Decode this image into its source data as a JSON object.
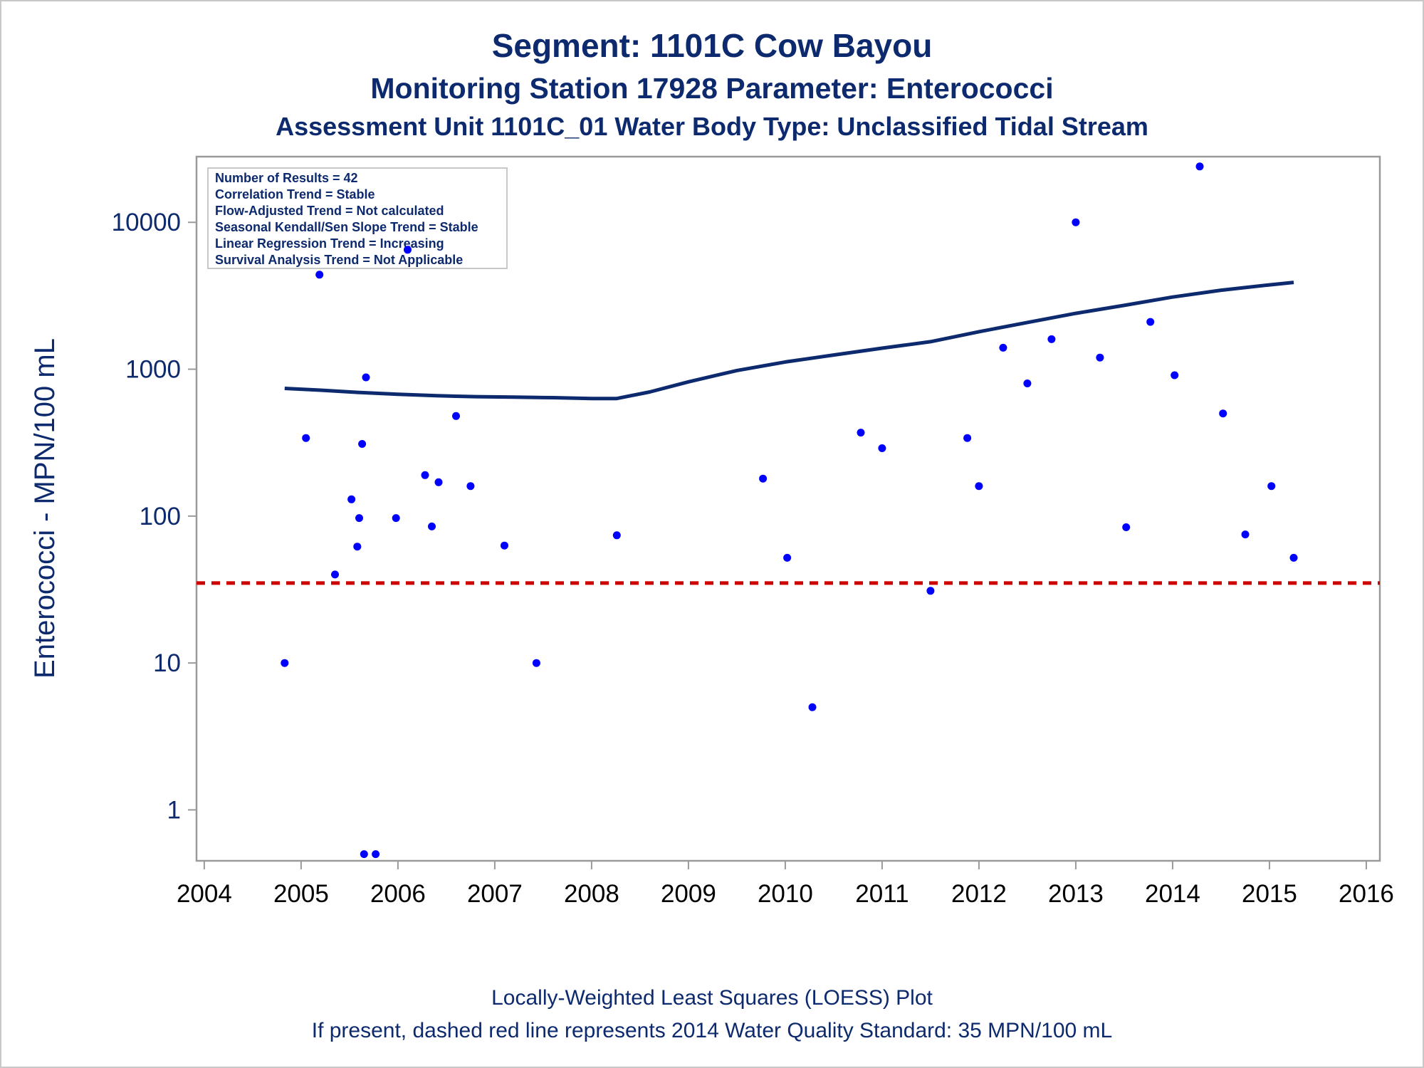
{
  "chart_data": {
    "type": "scatter",
    "title": "Segment: 1101C  Cow Bayou",
    "subtitle": "Monitoring Station 17928 Parameter: Enterococci",
    "subtitle2": "Assessment Unit 1101C_01   Water Body Type: Unclassified Tidal Stream",
    "ylabel": "Enterococci - MPN/100 mL",
    "xlabel": "",
    "y_scale": "log",
    "ylim": [
      0.45,
      28000
    ],
    "xlim": [
      2003.92,
      2016.14
    ],
    "y_ticks": [
      1,
      10,
      100,
      1000,
      10000
    ],
    "x_ticks": [
      2004,
      2005,
      2006,
      2007,
      2008,
      2009,
      2010,
      2011,
      2012,
      2013,
      2014,
      2015,
      2016
    ],
    "grid": false,
    "legend_box": [
      "Number of Results = 42",
      "Correlation Trend = Stable",
      "Flow-Adjusted Trend = Not calculated",
      "Seasonal Kendall/Sen Slope Trend = Stable",
      "Linear Regression Trend = Increasing",
      "Survival Analysis Trend = Not Applicable"
    ],
    "series": [
      {
        "type": "scatter",
        "color": "#0000ff",
        "points": [
          [
            2004.83,
            10
          ],
          [
            2005.05,
            340
          ],
          [
            2005.19,
            4400
          ],
          [
            2005.35,
            40
          ],
          [
            2005.52,
            130
          ],
          [
            2005.58,
            62
          ],
          [
            2005.6,
            97
          ],
          [
            2005.63,
            310
          ],
          [
            2005.65,
            0.5
          ],
          [
            2005.67,
            880
          ],
          [
            2005.77,
            0.5
          ],
          [
            2005.98,
            97
          ],
          [
            2006.1,
            6500
          ],
          [
            2006.28,
            190
          ],
          [
            2006.35,
            85
          ],
          [
            2006.42,
            170
          ],
          [
            2006.6,
            480
          ],
          [
            2006.75,
            160
          ],
          [
            2007.1,
            63
          ],
          [
            2007.43,
            10
          ],
          [
            2008.26,
            74
          ],
          [
            2009.77,
            180
          ],
          [
            2010.02,
            52
          ],
          [
            2010.28,
            5
          ],
          [
            2010.78,
            370
          ],
          [
            2011.0,
            290
          ],
          [
            2011.5,
            31
          ],
          [
            2011.88,
            340
          ],
          [
            2012.0,
            160
          ],
          [
            2012.25,
            1400
          ],
          [
            2012.5,
            800
          ],
          [
            2012.75,
            1600
          ],
          [
            2013.0,
            10000
          ],
          [
            2013.25,
            1200
          ],
          [
            2013.52,
            84
          ],
          [
            2013.77,
            2100
          ],
          [
            2014.02,
            910
          ],
          [
            2014.28,
            24000
          ],
          [
            2014.52,
            500
          ],
          [
            2014.75,
            75
          ],
          [
            2015.02,
            160
          ],
          [
            2015.25,
            52
          ]
        ]
      },
      {
        "type": "line",
        "name": "LOESS",
        "color": "#0d2a6e",
        "points": [
          [
            2004.83,
            740
          ],
          [
            2005.2,
            720
          ],
          [
            2005.6,
            695
          ],
          [
            2006.0,
            675
          ],
          [
            2006.4,
            660
          ],
          [
            2006.8,
            650
          ],
          [
            2007.2,
            645
          ],
          [
            2007.6,
            640
          ],
          [
            2008.0,
            632
          ],
          [
            2008.26,
            632
          ],
          [
            2008.6,
            700
          ],
          [
            2009.0,
            820
          ],
          [
            2009.5,
            980
          ],
          [
            2010.0,
            1120
          ],
          [
            2010.5,
            1250
          ],
          [
            2011.0,
            1390
          ],
          [
            2011.5,
            1540
          ],
          [
            2012.0,
            1800
          ],
          [
            2012.5,
            2080
          ],
          [
            2013.0,
            2400
          ],
          [
            2013.5,
            2720
          ],
          [
            2014.0,
            3100
          ],
          [
            2014.5,
            3450
          ],
          [
            2015.0,
            3750
          ],
          [
            2015.25,
            3900
          ]
        ]
      },
      {
        "type": "hline",
        "name": "2014 Water Quality Standard",
        "color": "#cc0000",
        "value": 35
      }
    ],
    "footnote1": "Locally-Weighted Least Squares (LOESS) Plot",
    "footnote2": "If present, dashed red line represents 2014 Water Quality Standard: 35 MPN/100 mL"
  }
}
